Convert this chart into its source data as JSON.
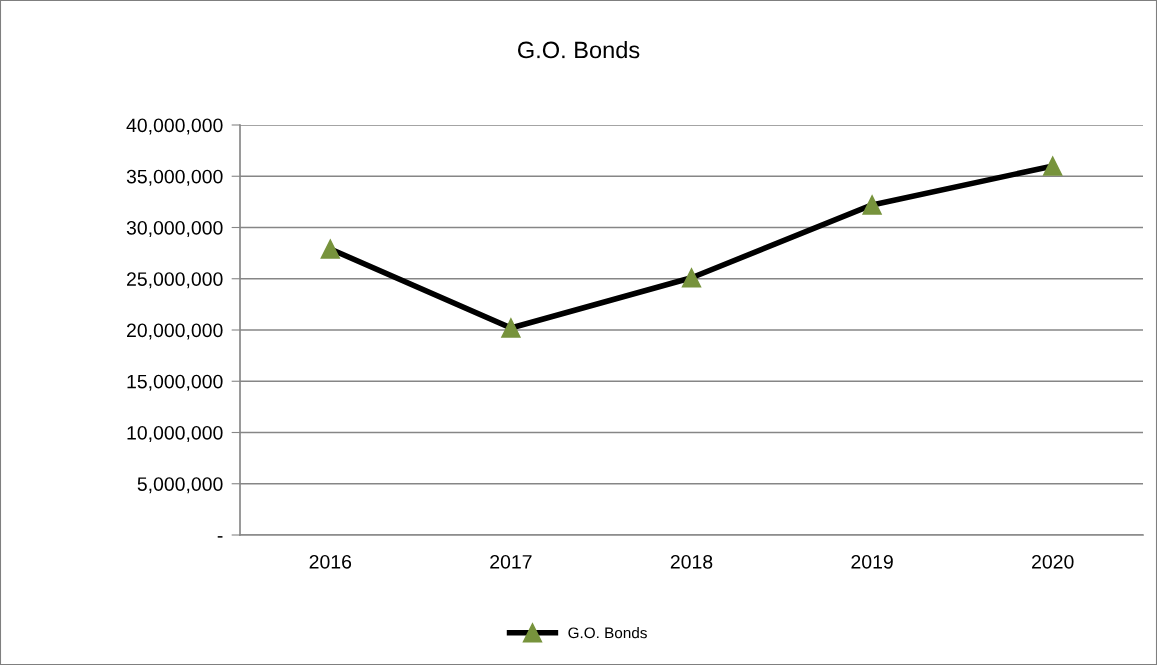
{
  "chart_data": {
    "type": "line",
    "title": "G.O. Bonds",
    "categories": [
      "2016",
      "2017",
      "2018",
      "2019",
      "2020"
    ],
    "series": [
      {
        "name": "G.O. Bonds",
        "color": "#77933c",
        "values": [
          27900000,
          20200000,
          25100000,
          32200000,
          36000000
        ]
      }
    ],
    "ylim": [
      0,
      40000000
    ],
    "yticks": [
      {
        "value": 0,
        "label": "-"
      },
      {
        "value": 5000000,
        "label": "5,000,000"
      },
      {
        "value": 10000000,
        "label": "10,000,000"
      },
      {
        "value": 15000000,
        "label": "15,000,000"
      },
      {
        "value": 20000000,
        "label": "20,000,000"
      },
      {
        "value": 25000000,
        "label": "25,000,000"
      },
      {
        "value": 30000000,
        "label": "30,000,000"
      },
      {
        "value": 35000000,
        "label": "35,000,000"
      },
      {
        "value": 40000000,
        "label": "40,000,000"
      }
    ],
    "grid": "y",
    "legend": "bottom",
    "marker": "triangle",
    "line_style": "solid"
  }
}
